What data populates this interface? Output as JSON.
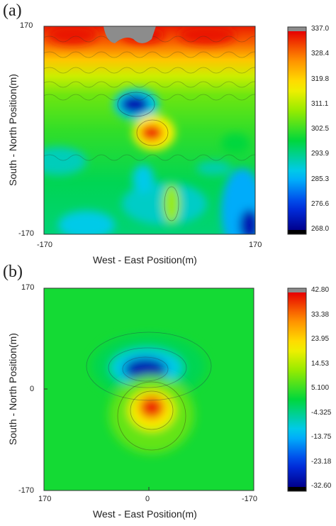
{
  "chart_data": [
    {
      "type": "heatmap",
      "panel_label": "(a)",
      "xlabel": "West - East Position(m)",
      "ylabel": "South - North Position(m)",
      "x_ticks": [
        "-170",
        "170"
      ],
      "y_ticks": [
        "170",
        "-170"
      ],
      "xlim": [
        -170,
        170
      ],
      "ylim": [
        -170,
        170
      ],
      "colorbar": {
        "ticks": [
          "337.0",
          "328.4",
          "319.8",
          "311.1",
          "302.5",
          "293.9",
          "285.3",
          "276.6",
          "268.0"
        ],
        "min": 268.0,
        "max": 337.0,
        "overflow_color": "#8c8c8c"
      },
      "features": [
        {
          "kind": "high",
          "x": 10,
          "y": 10,
          "value": 330
        },
        {
          "kind": "low",
          "x": -20,
          "y": 55,
          "value": 272
        },
        {
          "kind": "high-band",
          "y_from": 120,
          "y_to": 170,
          "value": 332
        },
        {
          "kind": "no-data",
          "x_from": -45,
          "x_to": 5,
          "y": 170
        },
        {
          "kind": "low",
          "x": 170,
          "y": -160,
          "value": 268
        }
      ],
      "contours": true
    },
    {
      "type": "heatmap",
      "panel_label": "(b)",
      "xlabel": "West - East Position(m)",
      "ylabel": "South - North Position(m)",
      "x_ticks": [
        "170",
        "0",
        "-170"
      ],
      "y_ticks": [
        "170",
        "0",
        "-170"
      ],
      "xlim": [
        170,
        -170
      ],
      "ylim": [
        -170,
        170
      ],
      "colorbar": {
        "ticks": [
          "42.80",
          "33.38",
          "23.95",
          "14.53",
          "5.100",
          "-4.325",
          "-13.75",
          "-23.18",
          "-32.60"
        ],
        "min": -32.6,
        "max": 42.8,
        "overflow_color": "#8c8c8c"
      },
      "features": [
        {
          "kind": "low",
          "x": 0,
          "y": 35,
          "value": -30
        },
        {
          "kind": "high",
          "x": -5,
          "y": -30,
          "value": 40
        }
      ],
      "contours": true
    }
  ]
}
